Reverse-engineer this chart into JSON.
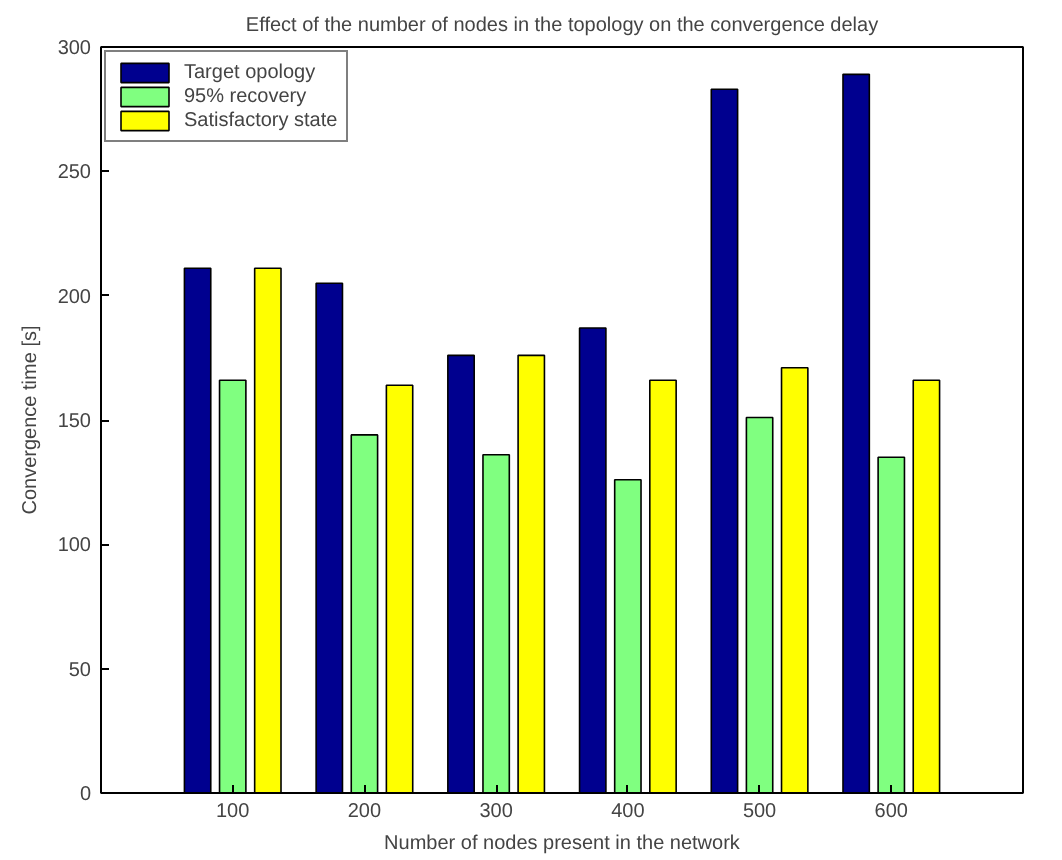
{
  "chart_data": {
    "type": "bar",
    "title": "Effect of the number of nodes in the topology on the convergence delay",
    "xlabel": "Number of nodes present in the network",
    "ylabel": "Convergence time [s]",
    "categories": [
      "100",
      "200",
      "300",
      "400",
      "500",
      "600"
    ],
    "series": [
      {
        "name": "Target opology",
        "color": "#00008f",
        "values": [
          211,
          205,
          176,
          187,
          283,
          289
        ]
      },
      {
        "name": "95% recovery",
        "color": "#80ff80",
        "values": [
          166,
          144,
          136,
          126,
          151,
          135
        ]
      },
      {
        "name": "Satisfactory state",
        "color": "#ffff00",
        "values": [
          211,
          164,
          176,
          166,
          171,
          166
        ]
      }
    ],
    "ylim": [
      0,
      300
    ],
    "yticks": [
      0,
      50,
      100,
      150,
      200,
      250,
      300
    ],
    "grid": false,
    "legend": "top left"
  }
}
